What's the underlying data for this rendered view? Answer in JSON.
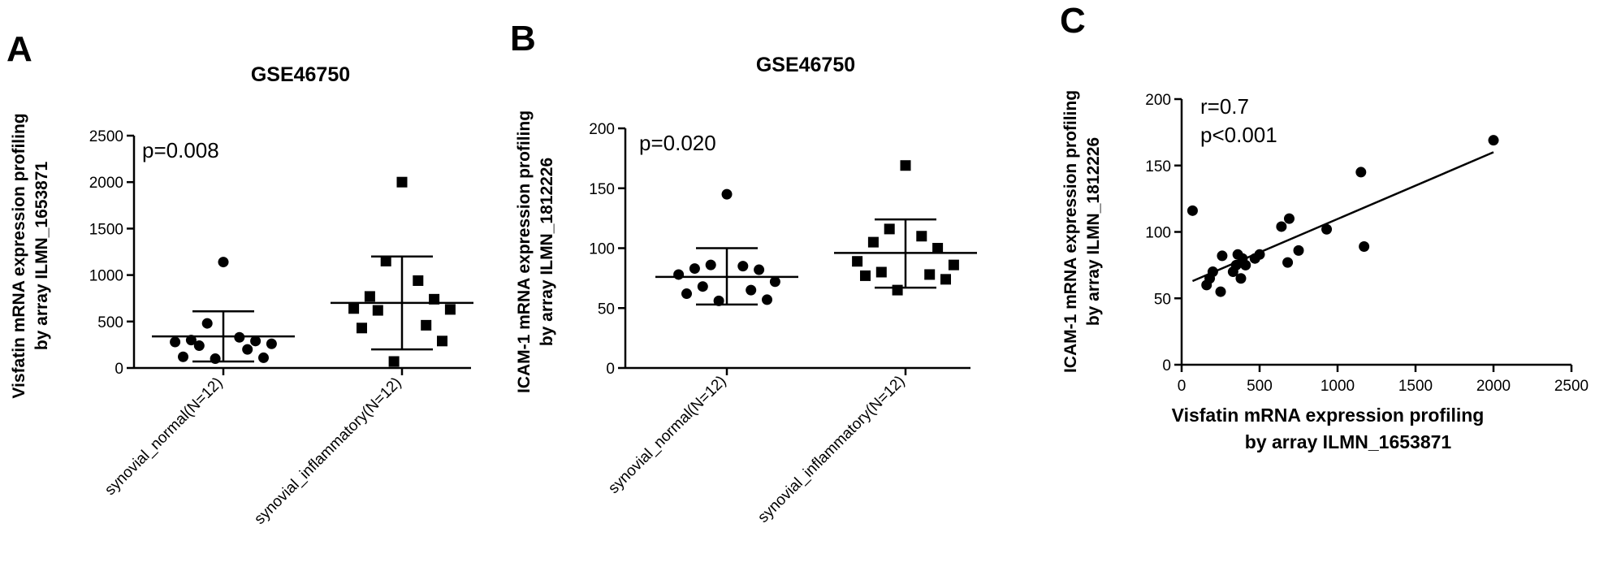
{
  "chart_data": [
    {
      "panel": "A",
      "type": "scatter",
      "title": "GSE46750",
      "ylabel": [
        "Visfatin mRNA expression profiling",
        "by array ILMN_1653871"
      ],
      "xlabel": "",
      "categories": [
        "synovial_normal(N=12)",
        "synovial_inflammatory(N=12)"
      ],
      "ylim": [
        0,
        2500
      ],
      "yticks": [
        0,
        500,
        1000,
        1500,
        2000,
        2500
      ],
      "annotation": "p=0.008",
      "series": [
        {
          "category": "synovial_normal(N=12)",
          "marker": "circle",
          "values": [
            1140,
            480,
            330,
            300,
            290,
            280,
            260,
            240,
            200,
            120,
            110,
            100
          ],
          "mean": 340,
          "sd_low": 70,
          "sd_high": 610
        },
        {
          "category": "synovial_inflammatory(N=12)",
          "marker": "square",
          "values": [
            2000,
            1150,
            940,
            770,
            740,
            640,
            630,
            620,
            460,
            430,
            290,
            70
          ],
          "mean": 700,
          "sd_low": 200,
          "sd_high": 1200
        }
      ]
    },
    {
      "panel": "B",
      "type": "scatter",
      "title": "GSE46750",
      "ylabel": [
        "ICAM-1 mRNA expression profiling",
        "by array ILMN_1812226"
      ],
      "xlabel": "",
      "categories": [
        "synovial_normal(N=12)",
        "synovial_inflammatory(N=12)"
      ],
      "ylim": [
        0,
        200
      ],
      "yticks": [
        0,
        50,
        100,
        150,
        200
      ],
      "annotation": "p=0.020",
      "series": [
        {
          "category": "synovial_normal(N=12)",
          "marker": "circle",
          "values": [
            145,
            86,
            85,
            83,
            82,
            78,
            72,
            68,
            65,
            62,
            57,
            56
          ],
          "mean": 76,
          "sd_low": 53,
          "sd_high": 100
        },
        {
          "category": "synovial_inflammatory(N=12)",
          "marker": "square",
          "values": [
            169,
            116,
            110,
            105,
            100,
            89,
            86,
            80,
            78,
            77,
            74,
            65
          ],
          "mean": 96,
          "sd_low": 67,
          "sd_high": 124
        }
      ]
    },
    {
      "panel": "C",
      "type": "scatter",
      "title": "",
      "ylabel": [
        "ICAM-1 mRNA expression profiling",
        "by array ILMN_1812226"
      ],
      "xlabel": [
        "Visfatin mRNA expression profiling",
        "by array ILMN_1653871"
      ],
      "xlim": [
        0,
        2500
      ],
      "xticks": [
        0,
        500,
        1000,
        1500,
        2000,
        2500
      ],
      "ylim": [
        0,
        200
      ],
      "yticks": [
        0,
        50,
        100,
        150,
        200
      ],
      "annotation": [
        "r=0.7",
        "p<0.001"
      ],
      "points": [
        [
          70,
          116
        ],
        [
          160,
          60
        ],
        [
          180,
          65
        ],
        [
          200,
          70
        ],
        [
          250,
          55
        ],
        [
          260,
          82
        ],
        [
          330,
          70
        ],
        [
          350,
          75
        ],
        [
          360,
          83
        ],
        [
          380,
          65
        ],
        [
          390,
          80
        ],
        [
          410,
          75
        ],
        [
          470,
          80
        ],
        [
          500,
          83
        ],
        [
          640,
          104
        ],
        [
          680,
          77
        ],
        [
          690,
          110
        ],
        [
          750,
          86
        ],
        [
          930,
          102
        ],
        [
          1150,
          145
        ],
        [
          1170,
          89
        ],
        [
          2000,
          169
        ]
      ],
      "fit_line": [
        [
          70,
          63
        ],
        [
          2000,
          160
        ]
      ]
    }
  ]
}
